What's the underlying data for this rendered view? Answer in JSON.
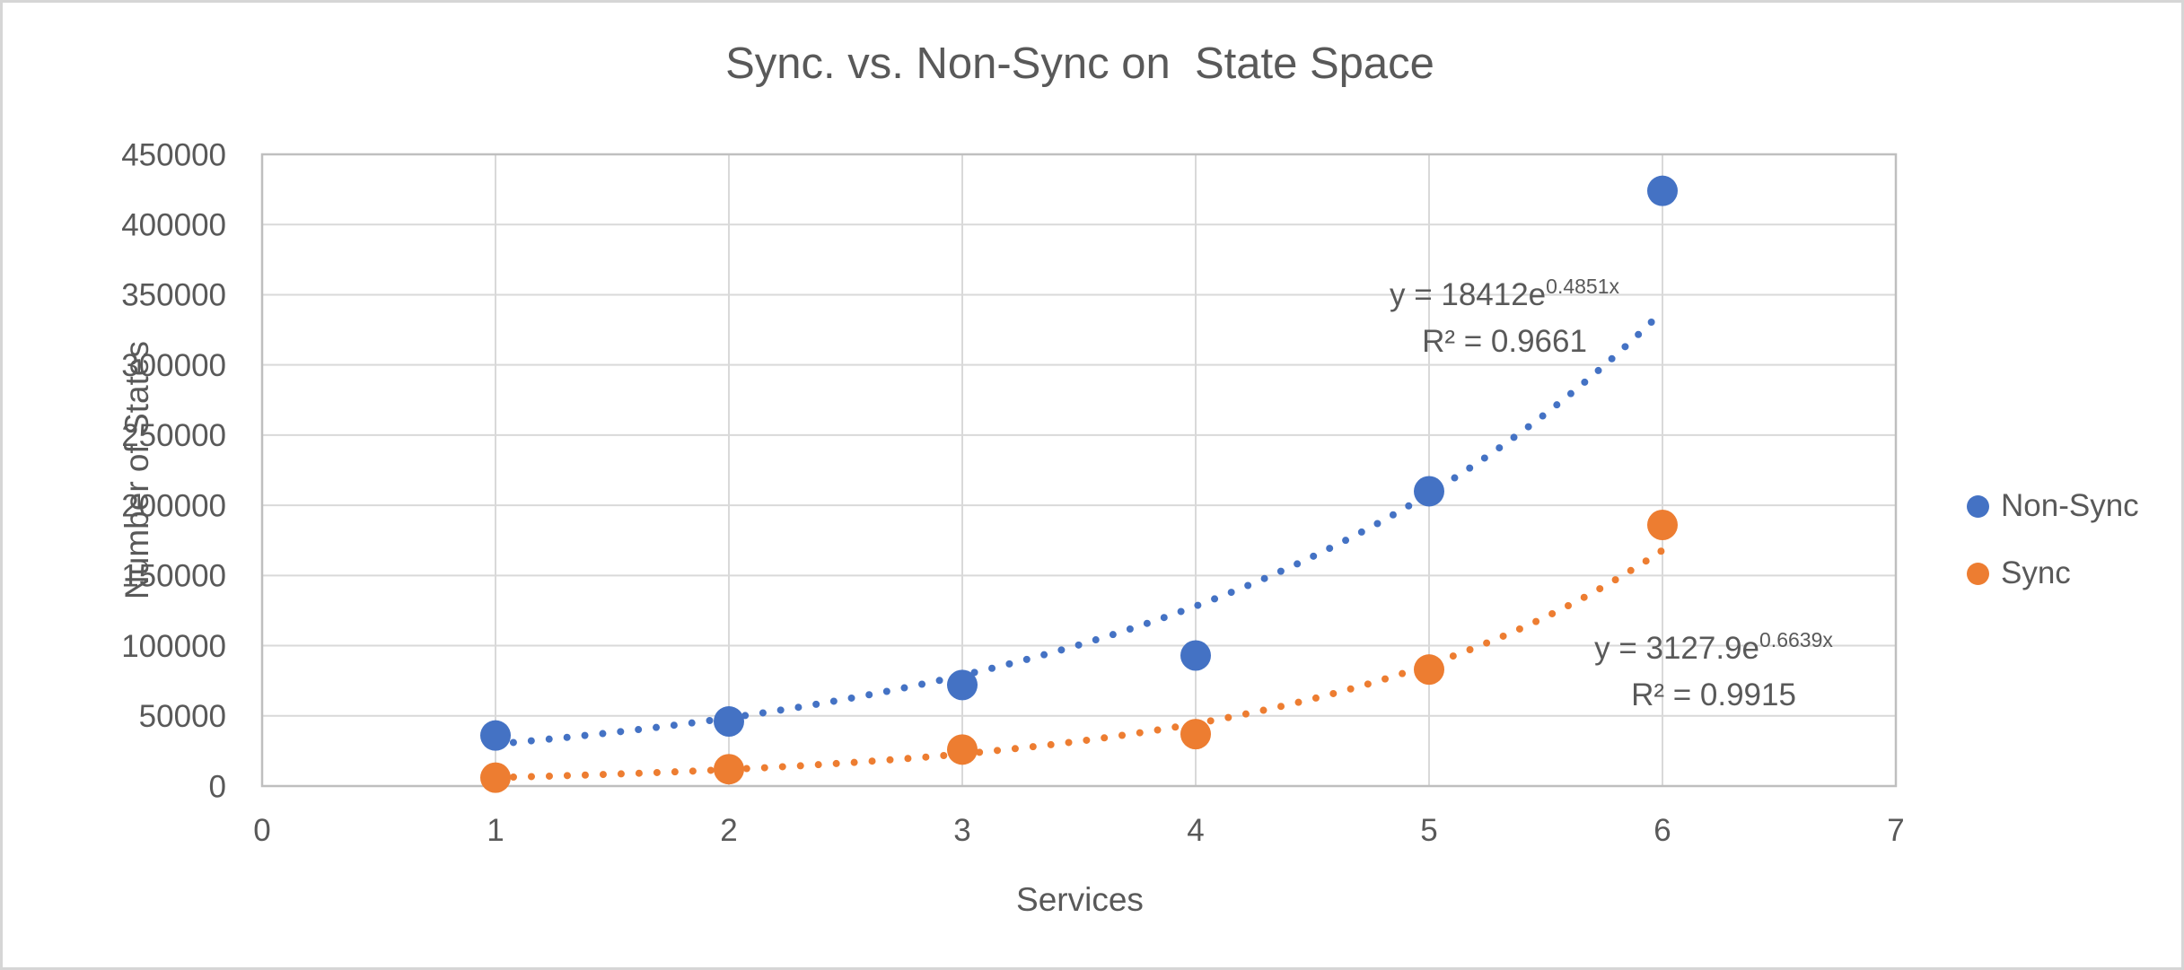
{
  "chart_data": {
    "type": "scatter",
    "title": "Sync. vs. Non-Sync on  State Space",
    "xlabel": "Services",
    "ylabel": "Number of States",
    "x": [
      1,
      2,
      3,
      4,
      5,
      6
    ],
    "xlim": [
      0,
      7
    ],
    "ylim": [
      0,
      450000
    ],
    "x_ticks": [
      0,
      1,
      2,
      3,
      4,
      5,
      6,
      7
    ],
    "y_ticks": [
      0,
      50000,
      100000,
      150000,
      200000,
      250000,
      300000,
      350000,
      400000,
      450000
    ],
    "grid": true,
    "legend_position": "right",
    "series": [
      {
        "name": "Non-Sync",
        "color": "#4472C4",
        "values": [
          36000,
          46000,
          72000,
          93000,
          210000,
          424000
        ],
        "trendline": {
          "type": "exponential",
          "a": 18412,
          "b": 0.4851,
          "style": "dotted",
          "eq_base": "y = 18412e",
          "eq_exp": "0.4851x",
          "r2": "R² = 0.9661"
        }
      },
      {
        "name": "Sync",
        "color": "#ED7D31",
        "values": [
          6000,
          12000,
          26000,
          37000,
          83000,
          186000
        ],
        "trendline": {
          "type": "exponential",
          "a": 3127.9,
          "b": 0.6639,
          "style": "dotted",
          "eq_base": "y = 3127.9e",
          "eq_exp": "0.6639x",
          "r2": "R² = 0.9915"
        }
      }
    ],
    "colors": {
      "grid": "#D9D9D9",
      "axis_border": "#BFBFBF",
      "text": "#595959"
    }
  }
}
